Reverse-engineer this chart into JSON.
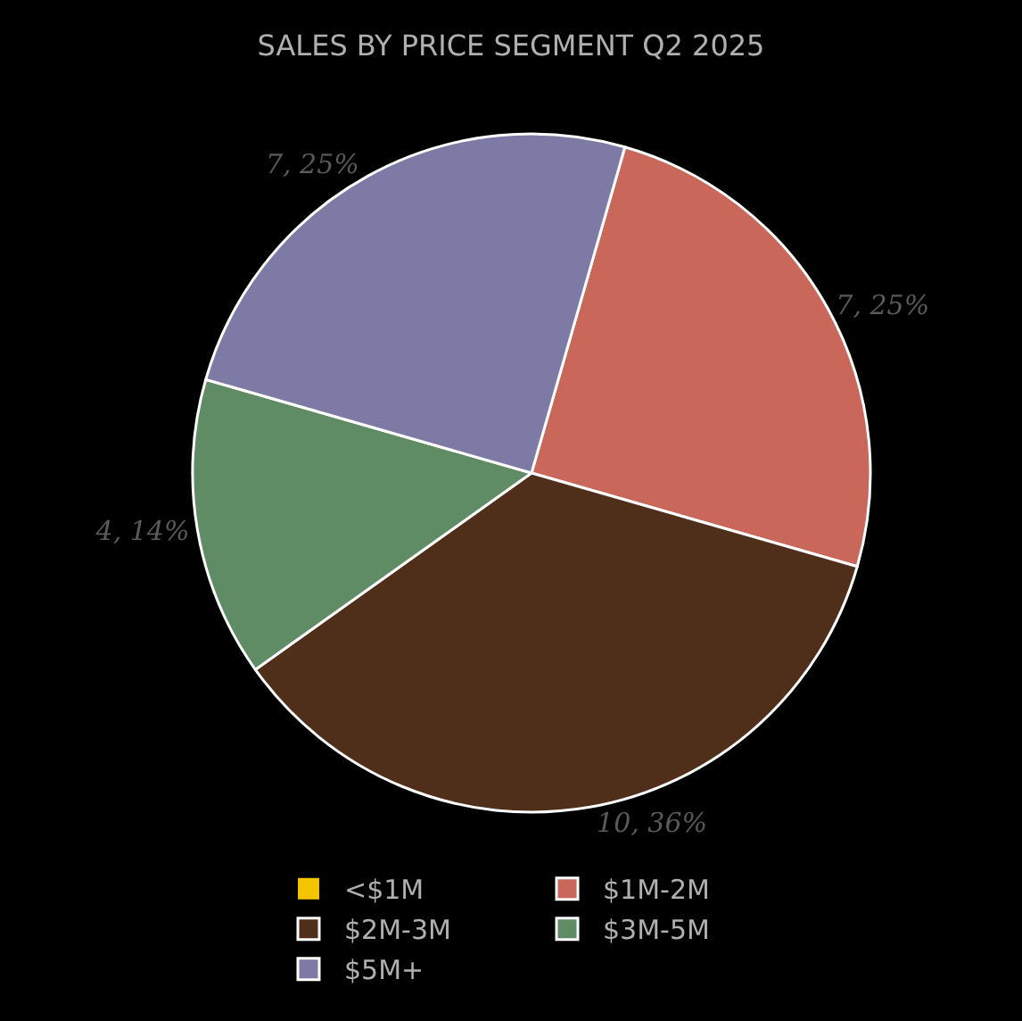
{
  "chart_data": {
    "type": "pie",
    "title": "SALES BY PRICE SEGMENT Q2 2025",
    "categories": [
      "<$1M",
      "$1M-2M",
      "$2M-3M",
      "$3M-5M",
      "$5M+"
    ],
    "values": [
      0,
      7,
      10,
      4,
      7
    ],
    "value_labels": [
      null,
      "7, 25%",
      "10, 36%",
      "4, 14%",
      "7, 25%"
    ],
    "colors": [
      "#f2c500",
      "#c8675a",
      "#4f2e1a",
      "#5f8c64",
      "#7d7ba5"
    ],
    "legend": "bottom"
  }
}
